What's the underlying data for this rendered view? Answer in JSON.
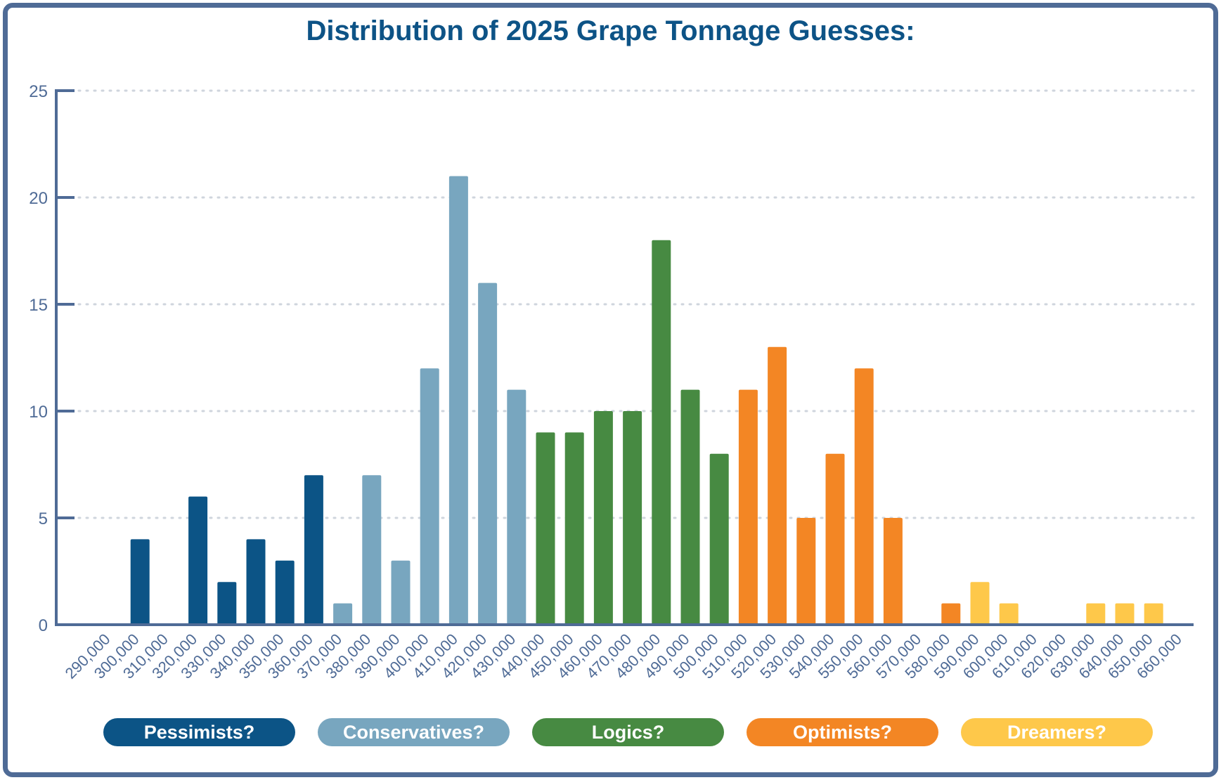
{
  "chart_data": {
    "type": "bar",
    "title": "Distribution of 2025 Grape Tonnage Guesses:",
    "xlabel": "",
    "ylabel": "",
    "ylim": [
      0,
      25
    ],
    "yticks": [
      "0",
      "5",
      "10",
      "15",
      "20",
      "25"
    ],
    "grid": true,
    "legend_placement": "bottom",
    "categories": [
      "290,000",
      "300,000",
      "310,000",
      "320,000",
      "330,000",
      "340,000",
      "350,000",
      "360,000",
      "370,000",
      "380,000",
      "390,000",
      "400,000",
      "410,000",
      "420,000",
      "430,000",
      "440,000",
      "450,000",
      "460,000",
      "470,000",
      "480,000",
      "490,000",
      "500,000",
      "510,000",
      "520,000",
      "530,000",
      "540,000",
      "550,000",
      "560,000",
      "570,000",
      "580,000",
      "590,000",
      "600,000",
      "610,000",
      "620,000",
      "630,000",
      "640,000",
      "650,000",
      "660,000"
    ],
    "values": [
      0,
      4,
      0,
      6,
      2,
      4,
      3,
      7,
      1,
      7,
      3,
      12,
      21,
      16,
      11,
      9,
      9,
      10,
      10,
      18,
      11,
      8,
      11,
      13,
      5,
      8,
      12,
      5,
      0,
      1,
      2,
      1,
      0,
      0,
      1,
      1,
      1,
      0
    ],
    "groups": [
      0,
      0,
      0,
      0,
      0,
      0,
      0,
      0,
      1,
      1,
      1,
      1,
      1,
      1,
      1,
      2,
      2,
      2,
      2,
      2,
      2,
      2,
      3,
      3,
      3,
      3,
      3,
      3,
      3,
      3,
      4,
      4,
      4,
      4,
      4,
      4,
      4,
      4
    ],
    "legend": [
      {
        "label": "Pessimists?",
        "color": "#0c5486"
      },
      {
        "label": "Conservatives?",
        "color": "#78a6bf"
      },
      {
        "label": "Logics?",
        "color": "#478a42"
      },
      {
        "label": "Optimists?",
        "color": "#f38624"
      },
      {
        "label": "Dreamers?",
        "color": "#fec84a"
      }
    ]
  }
}
